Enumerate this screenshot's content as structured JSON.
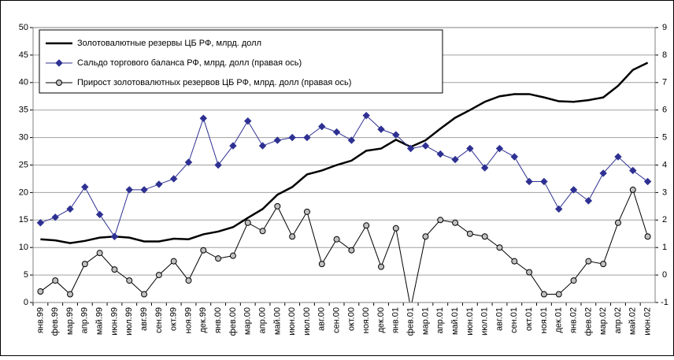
{
  "chart_data": {
    "type": "line",
    "categories": [
      "янв.99",
      "фев.99",
      "мар.99",
      "апр.99",
      "май.99",
      "июн.99",
      "июл.99",
      "авг.99",
      "сен.99",
      "окт.99",
      "ноя.99",
      "дек.99",
      "янв.00",
      "фев.00",
      "мар.00",
      "апр.00",
      "май.00",
      "июн.00",
      "июл.00",
      "авг.00",
      "сен.00",
      "окт.00",
      "ноя.00",
      "дек.00",
      "янв.01",
      "фев.01",
      "мар.01",
      "апр.01",
      "май.01",
      "июн.01",
      "июл.01",
      "авг.01",
      "сен.01",
      "окт.01",
      "ноя.01",
      "дек.01",
      "янв.02",
      "фев.02",
      "мар.02",
      "апр.02",
      "май.02",
      "июн.02"
    ],
    "series": [
      {
        "name": "Золотовалютные резервы ЦБ РФ, млрд. долл",
        "color": "#000000",
        "axis": "y",
        "marker": "none",
        "values": [
          11.5,
          11.3,
          10.8,
          11.2,
          11.8,
          12.0,
          11.8,
          11.1,
          11.1,
          11.6,
          11.5,
          12.4,
          12.9,
          13.7,
          15.4,
          17.0,
          19.6,
          21.0,
          23.3,
          24.0,
          25.0,
          25.8,
          27.6,
          28.0,
          29.6,
          28.3,
          29.5,
          31.6,
          33.6,
          35.0,
          36.5,
          37.5,
          37.9,
          37.9,
          37.3,
          36.6,
          36.5,
          36.8,
          37.3,
          39.4,
          42.3,
          43.6
        ]
      },
      {
        "name": "Сальдо торгового баланса РФ, млрд. долл (правая ось)",
        "color": "#2e3192",
        "axis": "y2",
        "marker": "diamond",
        "values": [
          1.9,
          2.1,
          2.4,
          3.2,
          2.2,
          1.4,
          3.1,
          3.1,
          3.3,
          3.5,
          4.1,
          5.7,
          4.0,
          4.7,
          5.6,
          4.7,
          4.9,
          5.0,
          5.0,
          5.4,
          5.2,
          4.9,
          5.8,
          5.3,
          5.1,
          4.6,
          4.7,
          4.4,
          4.2,
          4.6,
          3.9,
          4.6,
          4.3,
          3.4,
          3.4,
          2.4,
          3.1,
          2.7,
          3.7,
          4.3,
          3.8,
          3.4
        ]
      },
      {
        "name": "Прирост золотовалютных резервов ЦБ РФ, млрд. долл (правая ось)",
        "color": "#000000",
        "axis": "y2",
        "marker": "circle",
        "values": [
          -0.6,
          -0.2,
          -0.7,
          0.4,
          0.8,
          0.2,
          -0.2,
          -0.7,
          0.0,
          0.5,
          -0.2,
          0.9,
          0.6,
          0.7,
          1.9,
          1.6,
          2.5,
          1.4,
          2.3,
          0.4,
          1.3,
          0.9,
          1.8,
          0.3,
          1.7,
          -1.2,
          1.4,
          2.0,
          1.9,
          1.5,
          1.4,
          1.0,
          0.5,
          0.1,
          -0.7,
          -0.7,
          -0.2,
          0.5,
          0.4,
          1.9,
          3.1,
          1.4
        ]
      }
    ],
    "ylim": [
      0,
      50
    ],
    "yticks": [
      0,
      5,
      10,
      15,
      20,
      25,
      30,
      35,
      40,
      45,
      50
    ],
    "y2lim": [
      -1,
      9
    ],
    "y2ticks": [
      -1,
      0,
      1,
      2,
      3,
      4,
      5,
      6,
      7,
      8,
      9
    ],
    "grid": true,
    "legend": "top-left"
  }
}
